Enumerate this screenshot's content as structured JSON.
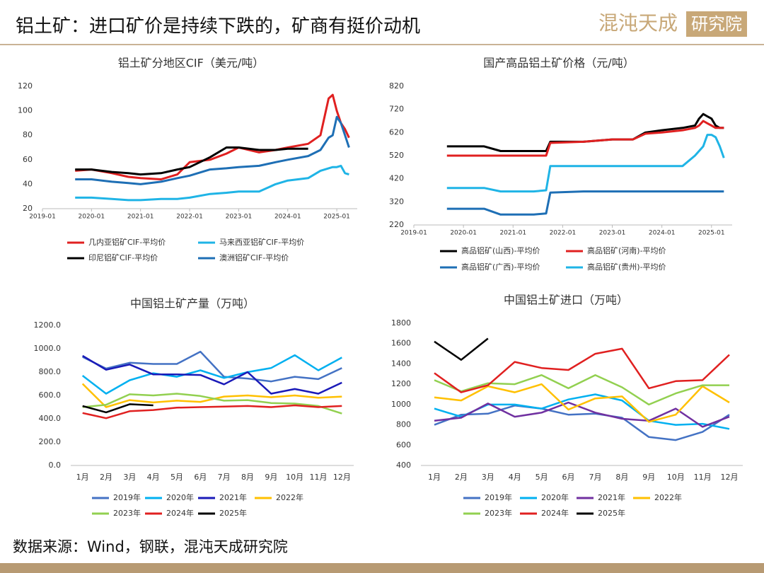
{
  "header": {
    "title": "铝土矿：进口矿价是持续下跌的，矿商有挺价动机"
  },
  "logo": {
    "brand": "混沌天成",
    "sub": "研究院"
  },
  "footer": {
    "source": "数据来源：Wind，钢联，混沌天成研究院"
  },
  "chart_data": [
    {
      "type": "line",
      "title": "铝土矿分地区CIF（美元/吨）",
      "x": [
        "2019-09",
        "2020-01",
        "2020-06",
        "2020-10",
        "2021-01",
        "2021-06",
        "2021-10",
        "2022-01",
        "2022-06",
        "2022-10",
        "2023-01",
        "2023-06",
        "2023-10",
        "2024-01",
        "2024-06",
        "2024-09",
        "2024-11",
        "2024-12",
        "2025-01",
        "2025-02",
        "2025-03",
        "2025-04"
      ],
      "xlim": [
        "2019-01",
        "2025-06"
      ],
      "xticks": [
        "2019-01",
        "2020-01",
        "2021-01",
        "2022-01",
        "2023-01",
        "2024-01",
        "2025-01"
      ],
      "ylim": [
        20,
        120
      ],
      "yticks": [
        20,
        40,
        60,
        80,
        100,
        120
      ],
      "series": [
        {
          "name": "几内亚铝矿CIF-平均价",
          "color": "#e02020",
          "values": [
            51,
            52,
            49,
            46,
            45,
            44,
            48,
            58,
            60,
            65,
            70,
            66,
            68,
            70,
            73,
            80,
            110,
            113,
            100,
            90,
            85,
            78
          ]
        },
        {
          "name": "马来西亚铝矿CIF-平均价",
          "color": "#1fb4e6",
          "values": [
            29,
            29,
            28,
            27,
            27,
            28,
            28,
            29,
            32,
            33,
            34,
            34,
            40,
            43,
            45,
            51,
            53,
            54,
            54,
            55,
            49,
            48
          ]
        },
        {
          "name": "印尼铝矿CIF-平均价",
          "color": "#000000",
          "values": [
            52,
            52,
            50,
            49,
            48,
            49,
            52,
            54,
            62,
            70,
            70,
            68,
            68,
            69,
            69,
            null,
            null,
            null,
            null,
            null,
            null,
            null
          ]
        },
        {
          "name": "澳洲铝矿CIF-平均价",
          "color": "#1e6fb5",
          "values": [
            44,
            44,
            42,
            41,
            40,
            42,
            45,
            47,
            52,
            53,
            54,
            55,
            58,
            60,
            63,
            68,
            78,
            80,
            95,
            90,
            80,
            70
          ]
        }
      ]
    },
    {
      "type": "line",
      "title": "国产高品铝土矿价格（元/吨）",
      "x": [
        "2019-09",
        "2020-06",
        "2020-10",
        "2021-06",
        "2021-09",
        "2021-10",
        "2022-06",
        "2023-01",
        "2023-06",
        "2023-09",
        "2024-01",
        "2024-06",
        "2024-09",
        "2024-10",
        "2024-11",
        "2024-12",
        "2025-01",
        "2025-02",
        "2025-03",
        "2025-04"
      ],
      "xlim": [
        "2019-01",
        "2025-06"
      ],
      "xticks": [
        "2019-01",
        "2020-01",
        "2021-01",
        "2022-01",
        "2023-01",
        "2024-01",
        "2025-01"
      ],
      "ylim": [
        220,
        820
      ],
      "yticks": [
        220,
        320,
        420,
        520,
        620,
        720,
        820
      ],
      "series": [
        {
          "name": "高品铝矿(山西)-平均价",
          "color": "#000000",
          "values": [
            560,
            560,
            540,
            540,
            540,
            580,
            580,
            590,
            590,
            620,
            630,
            640,
            650,
            680,
            700,
            690,
            680,
            650,
            640,
            640
          ]
        },
        {
          "name": "高品铝矿(河南)-平均价",
          "color": "#e02020",
          "values": [
            520,
            520,
            520,
            520,
            520,
            575,
            580,
            590,
            590,
            615,
            620,
            630,
            640,
            650,
            670,
            660,
            650,
            640,
            640,
            640
          ]
        },
        {
          "name": "高品铝矿(广西)-平均价",
          "color": "#1e6fb5",
          "values": [
            290,
            290,
            265,
            265,
            270,
            360,
            365,
            365,
            365,
            365,
            365,
            365,
            365,
            365,
            365,
            365,
            365,
            365,
            365,
            365
          ]
        },
        {
          "name": "高品铝矿(贵州)-平均价",
          "color": "#1fb4e6",
          "values": [
            380,
            380,
            365,
            365,
            370,
            475,
            475,
            475,
            475,
            475,
            475,
            475,
            520,
            540,
            560,
            610,
            610,
            600,
            560,
            510
          ]
        }
      ]
    },
    {
      "type": "line",
      "title": "中国铝土矿产量（万吨）",
      "categories": [
        "1月",
        "2月",
        "3月",
        "4月",
        "5月",
        "6月",
        "7月",
        "8月",
        "9月",
        "10月",
        "11月",
        "12月"
      ],
      "ylim": [
        0,
        1200
      ],
      "yticks": [
        {
          "value": 0,
          "label": "0.0"
        },
        {
          "value": 200,
          "label": "200.0"
        },
        {
          "value": 400,
          "label": "400.0"
        },
        {
          "value": 600,
          "label": "600.0"
        },
        {
          "value": 800,
          "label": "800.0"
        },
        {
          "value": 1000,
          "label": "1000.0"
        },
        {
          "value": 1200,
          "label": "1200.0"
        }
      ],
      "series": [
        {
          "name": "2019年",
          "color": "#4472c4",
          "values": [
            930,
            830,
            880,
            870,
            870,
            975,
            760,
            745,
            720,
            760,
            740,
            835
          ]
        },
        {
          "name": "2020年",
          "color": "#00b0f0",
          "values": [
            770,
            615,
            730,
            790,
            760,
            815,
            750,
            800,
            835,
            945,
            815,
            925
          ]
        },
        {
          "name": "2021年",
          "color": "#1a1ab8",
          "values": [
            940,
            820,
            865,
            780,
            780,
            775,
            695,
            800,
            615,
            655,
            615,
            710
          ]
        },
        {
          "name": "2022年",
          "color": "#ffc000",
          "values": [
            700,
            500,
            560,
            540,
            555,
            545,
            590,
            600,
            585,
            600,
            580,
            590
          ]
        },
        {
          "name": "2023年",
          "color": "#92d050",
          "values": [
            500,
            520,
            610,
            600,
            615,
            595,
            555,
            560,
            535,
            530,
            510,
            445
          ]
        },
        {
          "name": "2024年",
          "color": "#e02020",
          "values": [
            450,
            405,
            465,
            475,
            495,
            500,
            505,
            510,
            500,
            515,
            500,
            510
          ]
        },
        {
          "name": "2025年",
          "color": "#000000",
          "values": [
            510,
            455,
            525,
            515,
            null,
            null,
            null,
            null,
            null,
            null,
            null,
            null
          ]
        }
      ]
    },
    {
      "type": "line",
      "title": "中国铝土矿进口（万吨）",
      "categories": [
        "1月",
        "2月",
        "3月",
        "4月",
        "5月",
        "6月",
        "7月",
        "8月",
        "9月",
        "10月",
        "11月",
        "12月"
      ],
      "ylim": [
        400,
        1800
      ],
      "yticks": [
        400,
        600,
        800,
        1000,
        1200,
        1400,
        1600,
        1800
      ],
      "series": [
        {
          "name": "2019年",
          "color": "#4472c4",
          "values": [
            800,
            900,
            910,
            990,
            960,
            900,
            910,
            870,
            680,
            650,
            730,
            900
          ]
        },
        {
          "name": "2020年",
          "color": "#00b0f0",
          "values": [
            960,
            880,
            1000,
            1000,
            960,
            1050,
            1100,
            1040,
            840,
            800,
            810,
            760
          ]
        },
        {
          "name": "2021年",
          "color": "#7030a0",
          "values": [
            840,
            870,
            1010,
            880,
            920,
            1020,
            920,
            860,
            840,
            960,
            780,
            880
          ]
        },
        {
          "name": "2022年",
          "color": "#ffc000",
          "values": [
            1070,
            1040,
            1180,
            1120,
            1200,
            950,
            1060,
            1080,
            830,
            900,
            1180,
            1020
          ]
        },
        {
          "name": "2023年",
          "color": "#92d050",
          "values": [
            1240,
            1130,
            1210,
            1200,
            1290,
            1160,
            1290,
            1170,
            1000,
            1110,
            1190,
            1190
          ]
        },
        {
          "name": "2024年",
          "color": "#e02020",
          "values": [
            1310,
            1120,
            1190,
            1420,
            1360,
            1340,
            1500,
            1550,
            1160,
            1230,
            1240,
            1490
          ]
        },
        {
          "name": "2025年",
          "color": "#000000",
          "values": [
            1620,
            1440,
            1650,
            null,
            null,
            null,
            null,
            null,
            null,
            null,
            null,
            null
          ]
        }
      ]
    }
  ]
}
